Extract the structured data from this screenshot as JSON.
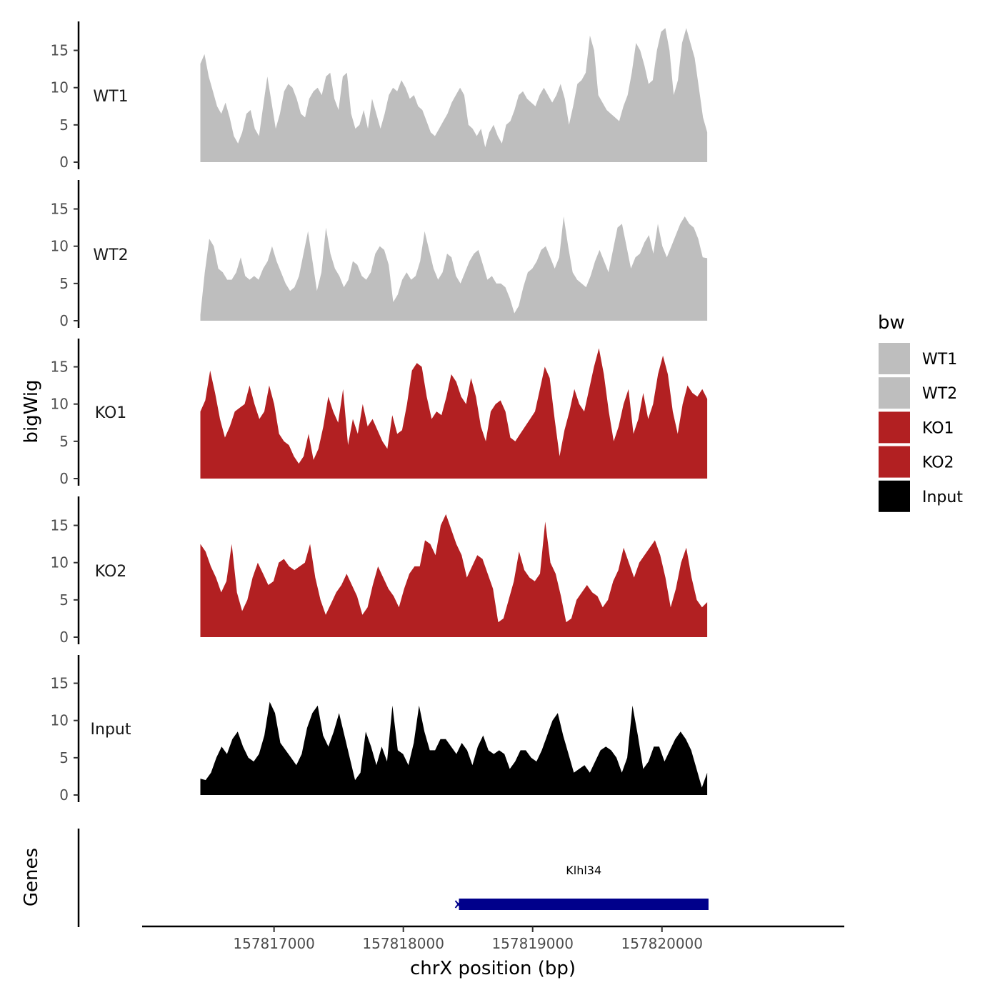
{
  "chart_data": {
    "type": "area",
    "ylabel": "bigWig",
    "xlabel": "chrX position (bp)",
    "ylim": [
      0,
      18.5
    ],
    "yticks": [
      0,
      5,
      10,
      15
    ],
    "xrange": [
      157816430,
      157820350
    ],
    "xlim": [
      157815980,
      157821410
    ],
    "xticks": [
      157817000,
      157818000,
      157819000,
      157820000
    ],
    "xtick_labels": [
      "157817000",
      "157818000",
      "157819000",
      "157820000"
    ],
    "series": [
      {
        "name": "WT1",
        "color": "#bebebe",
        "values": [
          13.2,
          14.5,
          11.5,
          9.5,
          7.5,
          6.5,
          8,
          6,
          3.5,
          2.5,
          4,
          6.5,
          7,
          4.5,
          3.5,
          7.5,
          11.5,
          8,
          4.5,
          6.5,
          9.5,
          10.5,
          10,
          8.5,
          6.5,
          6,
          8.5,
          9.5,
          10,
          9,
          11.5,
          12,
          8.5,
          7,
          11.5,
          12,
          6.5,
          4.5,
          5,
          7,
          4.5,
          8.5,
          6.5,
          4.5,
          6.5,
          9,
          10,
          9.5,
          11,
          10,
          8.5,
          9,
          7.5,
          7,
          5.5,
          4,
          3.5,
          4.5,
          5.5,
          6.5,
          8,
          9,
          10,
          9,
          5,
          4.5,
          3.5,
          4.5,
          2,
          4,
          5,
          3.5,
          2.5,
          5,
          5.5,
          7,
          9,
          9.5,
          8.5,
          8,
          7.5,
          9,
          10,
          9,
          8,
          9,
          10.5,
          8.5,
          5,
          7.5,
          10.5,
          11,
          12,
          17,
          15,
          9,
          8,
          7,
          6.5,
          6,
          5.5,
          7.5,
          9,
          12,
          16,
          15,
          13,
          10.5,
          11,
          15,
          17.5,
          18,
          15,
          9,
          11,
          16,
          18,
          16,
          14,
          10,
          6,
          4
        ]
      },
      {
        "name": "WT2",
        "color": "#bebebe",
        "values": [
          0.8,
          6.5,
          11,
          10,
          7,
          6.5,
          5.5,
          5.5,
          6.5,
          8.5,
          6,
          5.5,
          6,
          5.5,
          7,
          8,
          10,
          8,
          6.5,
          5,
          4,
          4.5,
          6,
          9,
          12,
          8,
          4,
          6.5,
          12.5,
          9,
          7,
          6,
          4.5,
          5.5,
          8,
          7.5,
          6,
          5.5,
          6.5,
          9,
          10,
          9.5,
          7.5,
          2.5,
          3.5,
          5.5,
          6.5,
          5.5,
          6,
          8,
          12,
          9.5,
          7,
          5.5,
          6.5,
          9,
          8.5,
          6,
          5,
          6.5,
          8,
          9,
          9.5,
          7.5,
          5.5,
          6,
          5,
          5,
          4.5,
          3,
          1,
          2,
          4.5,
          6.5,
          7,
          8,
          9.5,
          10,
          8.5,
          7,
          8.5,
          14,
          10,
          6.5,
          5.5,
          5,
          4.5,
          6,
          8,
          9.5,
          8,
          6.5,
          9.5,
          12.5,
          13,
          10,
          7,
          8.5,
          9,
          10.5,
          11.5,
          9,
          13,
          10,
          8.5,
          10,
          11.5,
          13,
          14,
          13,
          12.5,
          11,
          8.5,
          8.4
        ]
      },
      {
        "name": "KO1",
        "color": "#b22022",
        "values": [
          9,
          10.5,
          14.5,
          11.5,
          8,
          5.5,
          7,
          9,
          9.5,
          10,
          12.5,
          10,
          8,
          9,
          12.5,
          10,
          6,
          5,
          4.5,
          3,
          2,
          3,
          6,
          2.5,
          4,
          7,
          11,
          9,
          7.5,
          12,
          4.5,
          8,
          6,
          10,
          7,
          8,
          6.5,
          5,
          4,
          8.5,
          6,
          6.5,
          10,
          14.5,
          15.5,
          15,
          11,
          8,
          9,
          8.5,
          11,
          14,
          13,
          11,
          10,
          13.5,
          11,
          7,
          5,
          9,
          10,
          10.5,
          9,
          5.5,
          5,
          6,
          7,
          8,
          9,
          12,
          15,
          13.5,
          8,
          3,
          6.5,
          9,
          12,
          10,
          9,
          12,
          15,
          17.5,
          14,
          9,
          5,
          7,
          10,
          12,
          6,
          8,
          11.5,
          8,
          10,
          14,
          16.5,
          14,
          9,
          6,
          10,
          12.5,
          11.5,
          11,
          12,
          10.7
        ]
      },
      {
        "name": "KO2",
        "color": "#b22022",
        "values": [
          12.5,
          11.5,
          9.5,
          8,
          6,
          7.5,
          12.5,
          6,
          3.5,
          5,
          8,
          10,
          8.5,
          7,
          7.5,
          10,
          10.5,
          9.5,
          9,
          9.5,
          10,
          12.5,
          8,
          5,
          3,
          4.5,
          6,
          7,
          8.5,
          7,
          5.5,
          3,
          4,
          7,
          9.5,
          8,
          6.5,
          5.5,
          4,
          6.5,
          8.5,
          9.5,
          9.5,
          13,
          12.5,
          11,
          15,
          16.5,
          14.5,
          12.5,
          11,
          8,
          9.5,
          11,
          10.5,
          8.5,
          6.5,
          2,
          2.5,
          5,
          7.5,
          11.5,
          9,
          8,
          7.5,
          8.5,
          15.5,
          10,
          8.5,
          5.5,
          2,
          2.5,
          5,
          6,
          7,
          6,
          5.5,
          4,
          5,
          7.5,
          9,
          12,
          10,
          8,
          10,
          11,
          12,
          13,
          11,
          8,
          4,
          6.5,
          10,
          12,
          8,
          5,
          4,
          4.7
        ]
      },
      {
        "name": "Input",
        "color": "#000000",
        "values": [
          2.2,
          2,
          3,
          5,
          6.5,
          5.5,
          7.5,
          8.5,
          6.5,
          5,
          4.5,
          5.5,
          8,
          12.5,
          11,
          7,
          6,
          5,
          4,
          5.5,
          9,
          11,
          12,
          8,
          6.5,
          8.5,
          11,
          8,
          5,
          2,
          3,
          8.5,
          6.5,
          4,
          6.5,
          4.5,
          12,
          6,
          5.5,
          4,
          7,
          12,
          8.5,
          6,
          6,
          7.5,
          7.5,
          6.5,
          5.5,
          7,
          6,
          4,
          6.5,
          8,
          6,
          5.5,
          6,
          5.5,
          3.5,
          4.5,
          6,
          6,
          5,
          4.5,
          6,
          8,
          10,
          11,
          8,
          5.5,
          3,
          3.5,
          4,
          3,
          4.5,
          6,
          6.5,
          6,
          5,
          3,
          5,
          12,
          8,
          3.5,
          4.5,
          6.5,
          6.5,
          4.5,
          6,
          7.5,
          8.5,
          7.5,
          6,
          3.5,
          1,
          3
        ]
      }
    ],
    "legend": {
      "title": "bw",
      "entries": [
        {
          "label": "WT1",
          "color": "#bebebe"
        },
        {
          "label": "WT2",
          "color": "#bebebe"
        },
        {
          "label": "KO1",
          "color": "#b22022"
        },
        {
          "label": "KO2",
          "color": "#b22022"
        },
        {
          "label": "Input",
          "color": "#000000"
        }
      ]
    },
    "genes": {
      "panel_label": "Genes",
      "items": [
        {
          "name": "Klhl34",
          "start": 157818430,
          "end": 157820360,
          "color": "#00008b"
        }
      ]
    }
  }
}
